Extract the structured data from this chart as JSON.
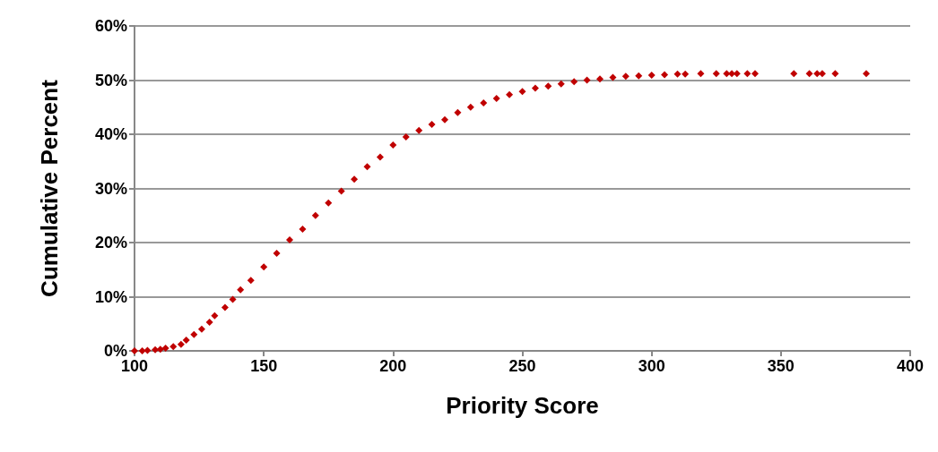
{
  "chart_data": {
    "type": "scatter",
    "xlabel": "Priority Score",
    "ylabel": "Cumulative Percent",
    "x": [
      100,
      103,
      105,
      108,
      110,
      112,
      115,
      118,
      120,
      123,
      126,
      129,
      131,
      135,
      138,
      141,
      145,
      150,
      155,
      160,
      165,
      170,
      175,
      180,
      185,
      190,
      195,
      200,
      205,
      210,
      215,
      220,
      225,
      230,
      235,
      240,
      245,
      250,
      255,
      260,
      265,
      270,
      275,
      280,
      285,
      290,
      295,
      300,
      305,
      310,
      313,
      319,
      325,
      329,
      331,
      333,
      337,
      340,
      355,
      361,
      364,
      366,
      371,
      383
    ],
    "series": [
      {
        "color": "#c00000",
        "values": [
          0,
          0,
          0.1,
          0.2,
          0.3,
          0.5,
          0.8,
          1.2,
          2,
          3,
          4,
          5.3,
          6.5,
          8,
          9.5,
          11.3,
          13,
          15.5,
          18,
          20.5,
          22.5,
          25,
          27.3,
          29.5,
          31.7,
          34,
          35.8,
          38,
          39.5,
          40.7,
          41.8,
          42.7,
          44,
          45,
          45.8,
          46.6,
          47.3,
          47.9,
          48.5,
          48.9,
          49.3,
          49.7,
          50,
          50.2,
          50.5,
          50.7,
          50.8,
          50.9,
          51,
          51.1,
          51.1,
          51.2,
          51.2,
          51.2,
          51.2,
          51.2,
          51.2,
          51.2,
          51.2,
          51.2,
          51.2,
          51.2,
          51.2,
          51.2
        ]
      }
    ],
    "xlim": [
      100,
      400
    ],
    "xticks": [
      100,
      150,
      200,
      250,
      300,
      350,
      400
    ],
    "ylim": [
      0,
      60
    ],
    "yticks": [
      {
        "value": 0,
        "label": "0%"
      },
      {
        "value": 10,
        "label": "10%"
      },
      {
        "value": 20,
        "label": "20%"
      },
      {
        "value": 30,
        "label": "30%"
      },
      {
        "value": 40,
        "label": "40%"
      },
      {
        "value": 50,
        "label": "50%"
      },
      {
        "value": 60,
        "label": "60%"
      }
    ],
    "grid": "y",
    "marker": "diamond"
  }
}
